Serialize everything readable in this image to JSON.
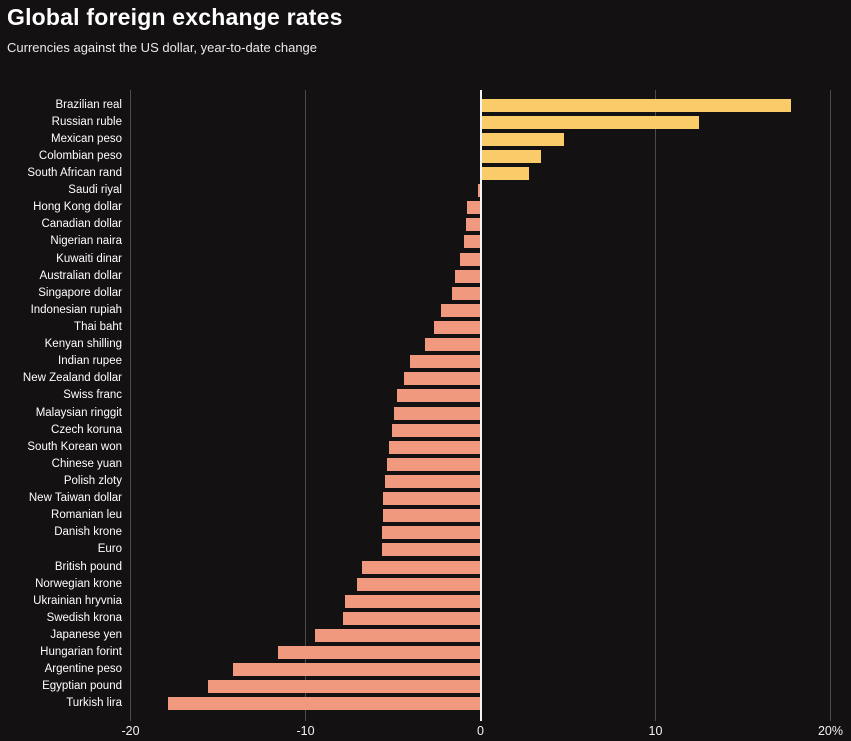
{
  "header": {
    "title": "Global foreign exchange rates",
    "subtitle": "Currencies against the US dollar, year-to-date change"
  },
  "colors": {
    "background": "#141112",
    "positive_bar": "#f9cb69",
    "negative_bar": "#f0997e",
    "zero_line": "#f4f4f4",
    "gridline": "#4b4b4b",
    "text": "#ffffff"
  },
  "chart_data": {
    "type": "bar",
    "orientation": "horizontal",
    "title": "Global foreign exchange rates",
    "subtitle": "Currencies against the US dollar, year-to-date change",
    "unit": "percent",
    "xlim": [
      -20,
      20
    ],
    "grid": "vertical",
    "legend": "none",
    "x_ticks": [
      {
        "value": -20,
        "label": "-20"
      },
      {
        "value": -10,
        "label": "-10"
      },
      {
        "value": 0,
        "label": "0"
      },
      {
        "value": 10,
        "label": "10"
      },
      {
        "value": 20,
        "label": "20%"
      }
    ],
    "categories": [
      "Brazilian real",
      "Russian ruble",
      "Mexican peso",
      "Colombian peso",
      "South African rand",
      "Saudi riyal",
      "Hong Kong dollar",
      "Canadian dollar",
      "Nigerian naira",
      "Kuwaiti dinar",
      "Australian dollar",
      "Singapore dollar",
      "Indonesian rupiah",
      "Thai baht",
      "Kenyan shilling",
      "Indian rupee",
      "New Zealand dollar",
      "Swiss franc",
      "Malaysian ringgit",
      "Czech koruna",
      "South Korean won",
      "Chinese yuan",
      "Polish zloty",
      "New Taiwan dollar",
      "Romanian leu",
      "Danish krone",
      "Euro",
      "British pound",
      "Norwegian krone",
      "Ukrainian hryvnia",
      "Swedish krona",
      "Japanese yen",
      "Hungarian forint",
      "Argentine peso",
      "Egyptian pound",
      "Turkish lira"
    ],
    "values": [
      17.7,
      12.4,
      4.7,
      3.4,
      2.7,
      -0.1,
      -0.7,
      -0.8,
      -0.9,
      -1.1,
      -1.4,
      -1.6,
      -2.2,
      -2.6,
      -3.1,
      -4.0,
      -4.3,
      -4.7,
      -4.9,
      -5.0,
      -5.2,
      -5.3,
      -5.4,
      -5.5,
      -5.5,
      -5.6,
      -5.6,
      -6.7,
      -7.0,
      -7.7,
      -7.8,
      -9.4,
      -11.5,
      -14.1,
      -15.5,
      -17.8
    ]
  }
}
